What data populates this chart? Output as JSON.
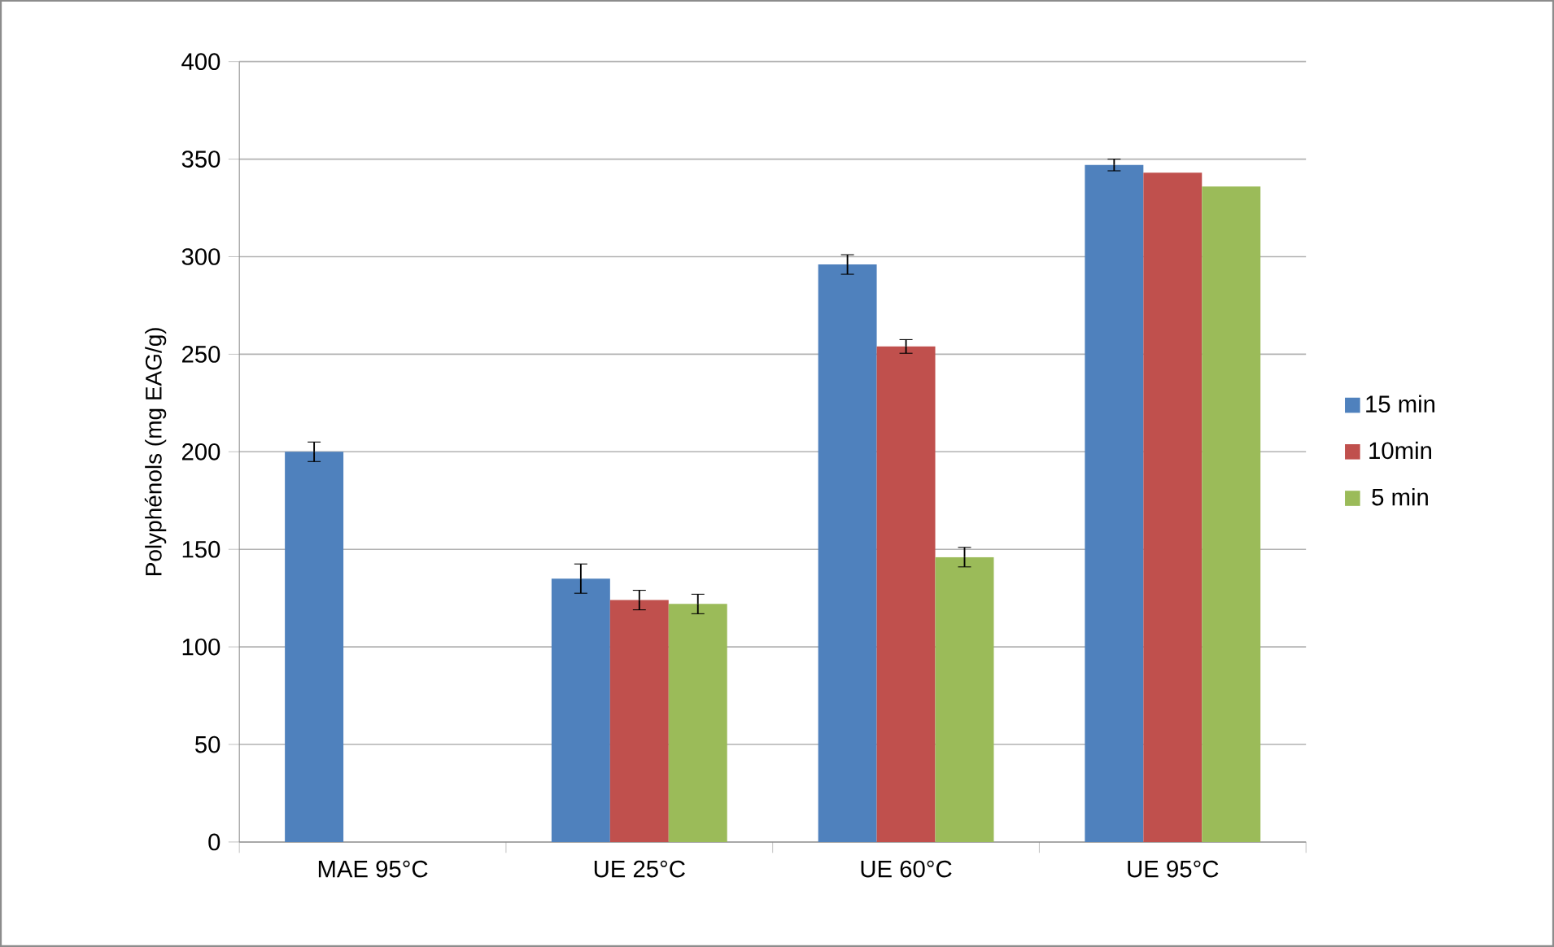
{
  "chart_data": {
    "type": "bar",
    "ylabel": "Polyphénols (mg EAG/g)",
    "categories": [
      "MAE 95°C",
      "UE 25°C",
      "UE 60°C",
      "UE 95°C"
    ],
    "series": [
      {
        "name": "15 min",
        "color": "#4f81bd",
        "values": [
          200,
          135,
          296,
          347
        ],
        "errors": [
          5,
          7.5,
          5,
          3
        ]
      },
      {
        "name": "10min",
        "color": "#c0504d",
        "values": [
          null,
          124,
          254,
          343
        ],
        "errors": [
          null,
          5,
          3.5,
          null
        ]
      },
      {
        "name": "5 min",
        "color": "#9bbb59",
        "values": [
          null,
          122,
          146,
          336
        ],
        "errors": [
          null,
          5,
          5,
          null
        ]
      }
    ],
    "ylim": [
      0,
      400
    ],
    "yticks": [
      0,
      50,
      100,
      150,
      200,
      250,
      300,
      350,
      400
    ],
    "grid": "y",
    "legend": "right"
  }
}
